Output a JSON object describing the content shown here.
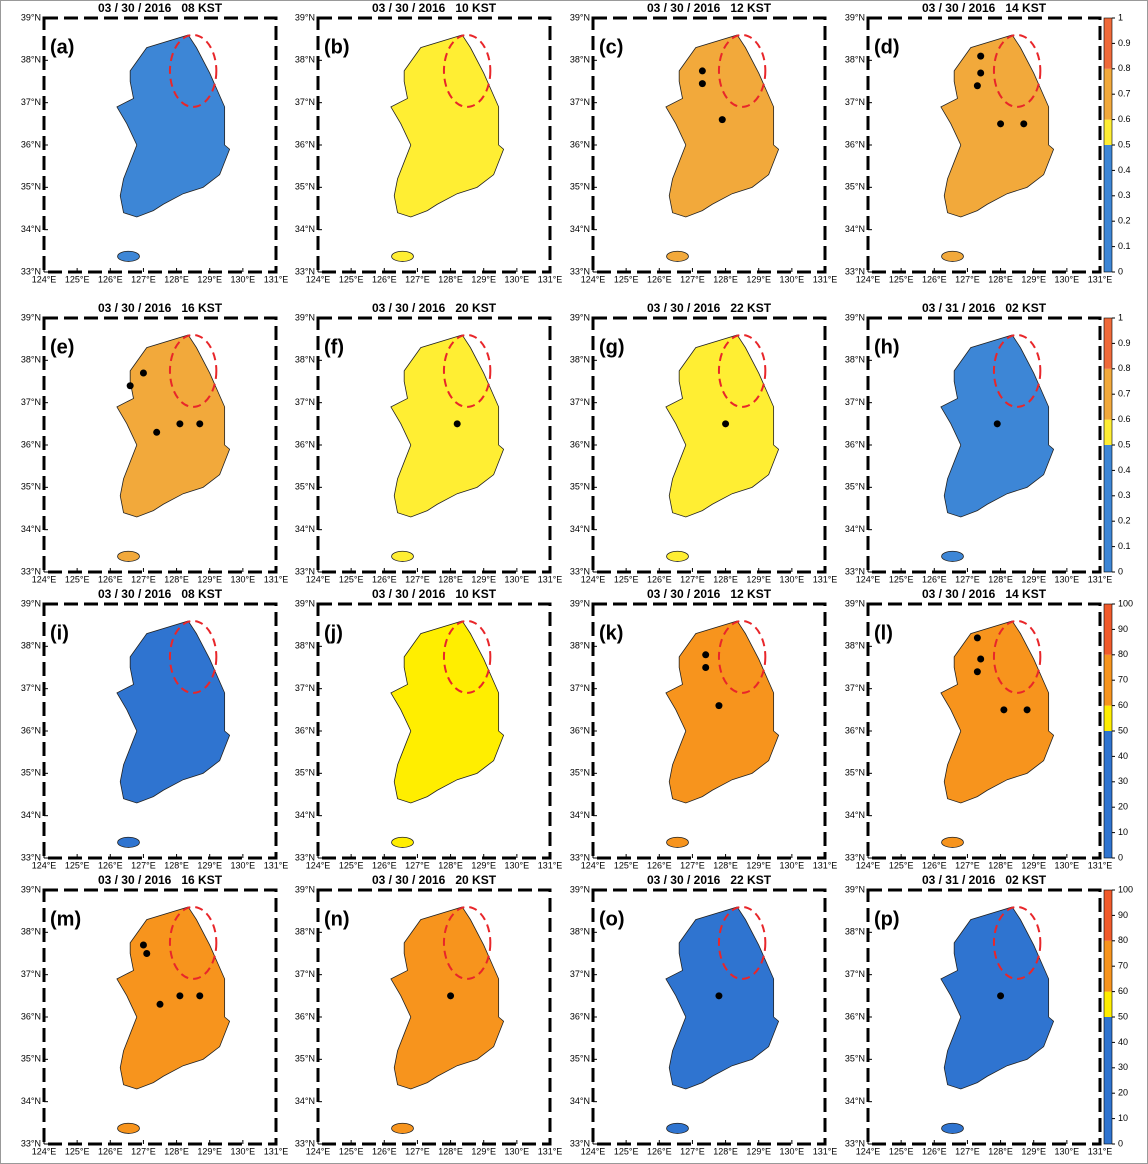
{
  "lat_ticks": [
    {
      "value": 33,
      "label": "33°N"
    },
    {
      "value": 34,
      "label": "34°N"
    },
    {
      "value": 35,
      "label": "35°N"
    },
    {
      "value": 36,
      "label": "36°N"
    },
    {
      "value": 37,
      "label": "37°N"
    },
    {
      "value": 38,
      "label": "38°N"
    },
    {
      "value": 39,
      "label": "39°N"
    }
  ],
  "lon_ticks": [
    {
      "value": 124,
      "label": "124°E"
    },
    {
      "value": 125,
      "label": "125°E"
    },
    {
      "value": 126,
      "label": "126°E"
    },
    {
      "value": 127,
      "label": "127°E"
    },
    {
      "value": 128,
      "label": "128°E"
    },
    {
      "value": 129,
      "label": "129°E"
    },
    {
      "value": 130,
      "label": "130°E"
    },
    {
      "value": 131,
      "label": "131°E"
    }
  ],
  "groups": [
    {
      "colorbar": {
        "ticks": [
          0,
          0.1,
          0.2,
          0.3,
          0.4,
          0.5,
          0.6,
          0.7,
          0.8,
          0.9,
          1
        ],
        "bounds": [
          0,
          0.5,
          0.6,
          0.8,
          1
        ],
        "colors": [
          "#3d86d6",
          "#ffee33",
          "#f2a93b",
          "#f06a3a"
        ]
      },
      "panels": [
        {
          "title": "03 / 30 / 2016   08 KST",
          "label": "(a)",
          "color": "#3d86d6",
          "points": []
        },
        {
          "title": "03 / 30 / 2016   10 KST",
          "label": "(b)",
          "color": "#ffee33",
          "points": []
        },
        {
          "title": "03 / 30 / 2016   12 KST",
          "label": "(c)",
          "color": "#f2a93b",
          "points": [
            [
              127.3,
              37.75
            ],
            [
              127.3,
              37.45
            ],
            [
              127.9,
              36.6
            ]
          ]
        },
        {
          "title": "03 / 30 / 2016   14 KST",
          "label": "(d)",
          "color": "#f2a93b",
          "points": [
            [
              127.4,
              38.1
            ],
            [
              127.4,
              37.7
            ],
            [
              127.3,
              37.4
            ],
            [
              128.0,
              36.5
            ],
            [
              128.7,
              36.5
            ]
          ]
        },
        {
          "title": "03 / 30 / 2016   16 KST",
          "label": "(e)",
          "color": "#f2a93b",
          "points": [
            [
              126.6,
              37.4
            ],
            [
              127.0,
              37.7
            ],
            [
              127.4,
              36.3
            ],
            [
              128.1,
              36.5
            ],
            [
              128.7,
              36.5
            ]
          ]
        },
        {
          "title": "03 / 30 / 2016   20 KST",
          "label": "(f)",
          "color": "#ffee33",
          "points": [
            [
              128.2,
              36.5
            ]
          ]
        },
        {
          "title": "03 / 30 / 2016   22 KST",
          "label": "(g)",
          "color": "#ffee33",
          "points": [
            [
              128.0,
              36.5
            ]
          ]
        },
        {
          "title": "03 / 31 / 2016   02 KST",
          "label": "(h)",
          "color": "#3d86d6",
          "points": [
            [
              127.9,
              36.5
            ]
          ]
        }
      ]
    },
    {
      "colorbar": {
        "ticks": [
          0,
          10,
          20,
          30,
          40,
          50,
          60,
          70,
          80,
          90,
          100
        ],
        "bounds": [
          0,
          50,
          60,
          80,
          100
        ],
        "colors": [
          "#2f74d0",
          "#ffee00",
          "#f7941d",
          "#f15a2b"
        ]
      },
      "panels": [
        {
          "title": "03 / 30 / 2016   08 KST",
          "label": "(i)",
          "color": "#2f74d0",
          "points": []
        },
        {
          "title": "03 / 30 / 2016   10 KST",
          "label": "(j)",
          "color": "#ffee00",
          "points": []
        },
        {
          "title": "03 / 30 / 2016   12 KST",
          "label": "(k)",
          "color": "#f7941d",
          "points": [
            [
              127.4,
              37.8
            ],
            [
              127.4,
              37.5
            ],
            [
              127.8,
              36.6
            ]
          ]
        },
        {
          "title": "03 / 30 / 2016   14 KST",
          "label": "(l)",
          "color": "#f7941d",
          "points": [
            [
              127.3,
              38.2
            ],
            [
              127.4,
              37.7
            ],
            [
              127.3,
              37.4
            ],
            [
              128.1,
              36.5
            ],
            [
              128.8,
              36.5
            ]
          ]
        },
        {
          "title": "03 / 30 / 2016   16 KST",
          "label": "(m)",
          "color": "#f7941d",
          "points": [
            [
              127.1,
              37.5
            ],
            [
              127.0,
              37.7
            ],
            [
              127.5,
              36.3
            ],
            [
              128.1,
              36.5
            ],
            [
              128.7,
              36.5
            ]
          ]
        },
        {
          "title": "03 / 30 / 2016   20 KST",
          "label": "(n)",
          "color": "#f7941d",
          "points": [
            [
              128.0,
              36.5
            ]
          ]
        },
        {
          "title": "03 / 30 / 2016   22 KST",
          "label": "(o)",
          "color": "#2f74d0",
          "points": [
            [
              127.8,
              36.5
            ]
          ]
        },
        {
          "title": "03 / 31 / 2016   02 KST",
          "label": "(p)",
          "color": "#2f74d0",
          "points": [
            [
              128.0,
              36.5
            ]
          ]
        }
      ]
    }
  ]
}
